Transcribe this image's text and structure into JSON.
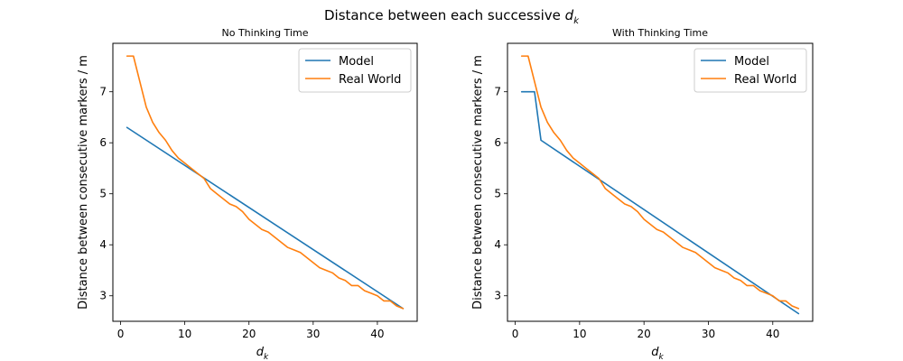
{
  "figure": {
    "suptitle_prefix": "Distance between each successive ",
    "suptitle_var": "d",
    "suptitle_sub": "k"
  },
  "chart_data": [
    {
      "type": "line",
      "title": "No Thinking Time",
      "xlabel_var": "d",
      "xlabel_sub": "k",
      "ylabel": "Distance between consecutive markers / m",
      "xlim": [
        -1.2,
        46.2
      ],
      "ylim": [
        2.5,
        7.95
      ],
      "xticks": [
        0,
        10,
        20,
        30,
        40
      ],
      "yticks": [
        3,
        4,
        5,
        6,
        7
      ],
      "grid": false,
      "legend_position": "top-right",
      "series": [
        {
          "name": "Model",
          "color": "#1f77b4",
          "x": [
            1,
            44
          ],
          "y": [
            6.3,
            2.75
          ]
        },
        {
          "name": "Real World",
          "color": "#ff7f0e",
          "x": [
            1,
            2,
            3,
            4,
            5,
            6,
            7,
            8,
            9,
            10,
            11,
            12,
            13,
            14,
            15,
            16,
            17,
            18,
            19,
            20,
            21,
            22,
            23,
            24,
            25,
            26,
            27,
            28,
            29,
            30,
            31,
            32,
            33,
            34,
            35,
            36,
            37,
            38,
            39,
            40,
            41,
            42,
            43,
            44
          ],
          "y": [
            7.7,
            7.7,
            7.2,
            6.7,
            6.4,
            6.2,
            6.05,
            5.85,
            5.7,
            5.6,
            5.5,
            5.4,
            5.3,
            5.1,
            5.0,
            4.9,
            4.8,
            4.75,
            4.65,
            4.5,
            4.4,
            4.3,
            4.25,
            4.15,
            4.05,
            3.95,
            3.9,
            3.85,
            3.75,
            3.65,
            3.55,
            3.5,
            3.45,
            3.35,
            3.3,
            3.2,
            3.2,
            3.1,
            3.05,
            3.0,
            2.9,
            2.9,
            2.8,
            2.75
          ]
        }
      ]
    },
    {
      "type": "line",
      "title": "With Thinking Time",
      "xlabel_var": "d",
      "xlabel_sub": "k",
      "ylabel": "Distance between consecutive markers / m",
      "xlim": [
        -1.2,
        46.2
      ],
      "ylim": [
        2.5,
        7.95
      ],
      "xticks": [
        0,
        10,
        20,
        30,
        40
      ],
      "yticks": [
        3,
        4,
        5,
        6,
        7
      ],
      "grid": false,
      "legend_position": "top-right",
      "series": [
        {
          "name": "Model",
          "color": "#1f77b4",
          "x": [
            1,
            3,
            4,
            44
          ],
          "y": [
            7.0,
            7.0,
            6.05,
            2.65
          ]
        },
        {
          "name": "Real World",
          "color": "#ff7f0e",
          "x": [
            1,
            2,
            3,
            4,
            5,
            6,
            7,
            8,
            9,
            10,
            11,
            12,
            13,
            14,
            15,
            16,
            17,
            18,
            19,
            20,
            21,
            22,
            23,
            24,
            25,
            26,
            27,
            28,
            29,
            30,
            31,
            32,
            33,
            34,
            35,
            36,
            37,
            38,
            39,
            40,
            41,
            42,
            43,
            44
          ],
          "y": [
            7.7,
            7.7,
            7.2,
            6.7,
            6.4,
            6.2,
            6.05,
            5.85,
            5.7,
            5.6,
            5.5,
            5.4,
            5.3,
            5.1,
            5.0,
            4.9,
            4.8,
            4.75,
            4.65,
            4.5,
            4.4,
            4.3,
            4.25,
            4.15,
            4.05,
            3.95,
            3.9,
            3.85,
            3.75,
            3.65,
            3.55,
            3.5,
            3.45,
            3.35,
            3.3,
            3.2,
            3.2,
            3.1,
            3.05,
            3.0,
            2.9,
            2.9,
            2.8,
            2.75
          ]
        }
      ]
    }
  ]
}
